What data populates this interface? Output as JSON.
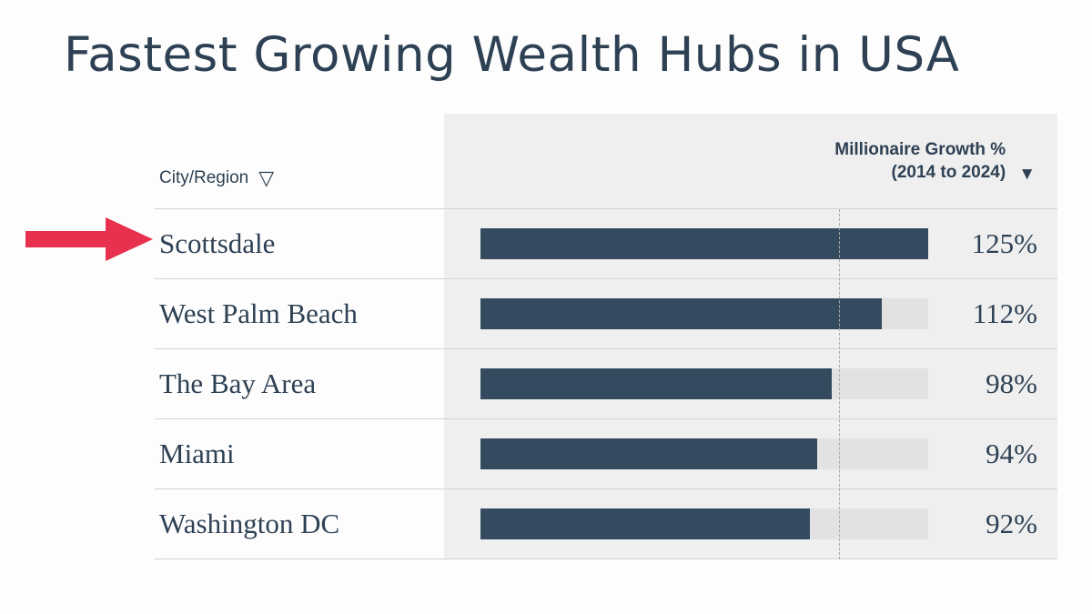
{
  "title": "Fastest Growing Wealth Hubs in USA",
  "header": {
    "city_label": "City/Region",
    "city_sort_glyph": "▽",
    "value_line1": "Millionaire Growth %",
    "value_line2": "(2014 to 2024)",
    "value_sort_glyph": "▼"
  },
  "chart_data": {
    "type": "bar",
    "orientation": "horizontal",
    "title": "Fastest Growing Wealth Hubs in USA",
    "categories": [
      "Scottsdale",
      "West Palm Beach",
      "The Bay Area",
      "Miami",
      "Washington DC"
    ],
    "values": [
      125,
      112,
      98,
      94,
      92
    ],
    "value_labels": [
      "125%",
      "112%",
      "98%",
      "94%",
      "92%"
    ],
    "series_name": "Millionaire Growth % (2014 to 2024)",
    "xlim": [
      0,
      125
    ],
    "reference_line": 100,
    "sort_order": "descending",
    "legend": "none",
    "grid": "off"
  },
  "annotation": {
    "arrow_icon": "red-arrow-right",
    "points_to": "Scottsdale"
  },
  "colors": {
    "text": "#2e4154",
    "bar": "#344a5e",
    "panel": "#efefef",
    "track": "#e2e2e2",
    "divider": "#d4d4d4",
    "arrow": "#e8304f"
  }
}
